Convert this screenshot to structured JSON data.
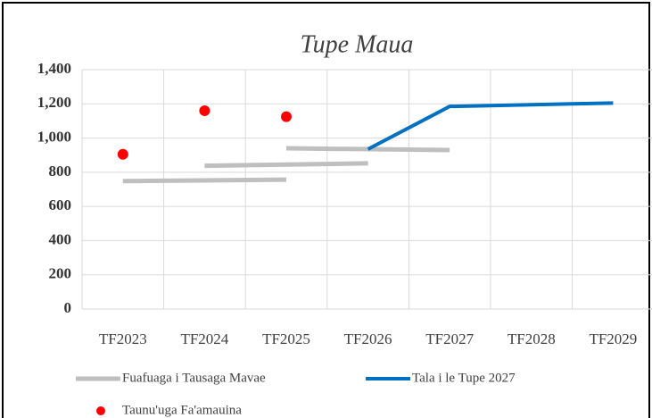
{
  "chart_data": {
    "type": "line",
    "title": "Tupe Maua",
    "categories": [
      "TF2023",
      "TF2024",
      "TF2025",
      "TF2026",
      "TF2027",
      "TF2028",
      "TF2029"
    ],
    "ylim": [
      0,
      1400
    ],
    "yticks": [
      {
        "value": 0,
        "label": "0"
      },
      {
        "value": 200,
        "label": "200"
      },
      {
        "value": 400,
        "label": "400"
      },
      {
        "value": 600,
        "label": "600"
      },
      {
        "value": 800,
        "label": "800"
      },
      {
        "value": 1000,
        "label": "1,000"
      },
      {
        "value": 1200,
        "label": "1,200"
      },
      {
        "value": 1400,
        "label": "1,400"
      }
    ],
    "grid": true,
    "legend": "bottom",
    "series": [
      {
        "name": "Fuafuaga i Tausaga Mavae",
        "color": "#bfbfbf",
        "pieces": [
          {
            "x": [
              "TF2023",
              "TF2025"
            ],
            "values": [
              748,
              757
            ]
          },
          {
            "x": [
              "TF2024",
              "TF2026"
            ],
            "values": [
              838,
              852
            ]
          },
          {
            "x": [
              "TF2025",
              "TF2027"
            ],
            "values": [
              940,
              930
            ]
          }
        ]
      },
      {
        "name": "Tala i le Tupe 2027",
        "color": "#0070c0",
        "values": [
          null,
          null,
          null,
          935,
          1185,
          1195,
          1205
        ]
      },
      {
        "name": "Taunu'uga Fa'amauina",
        "color": "#ff0000",
        "marker": "dot",
        "values": [
          905,
          1160,
          1125,
          null,
          null,
          null,
          null
        ]
      }
    ]
  }
}
